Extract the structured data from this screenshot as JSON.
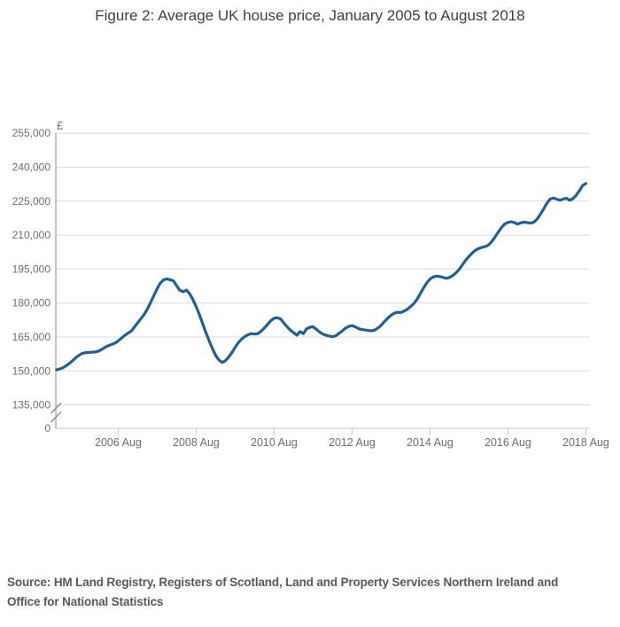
{
  "title": "Figure 2: Average UK house price, January 2005 to August 2018",
  "source_lines": [
    "Source: HM Land Registry, Registers of Scotland, Land and Property Services Northern Ireland and",
    "Office for National Statistics"
  ],
  "chart_data": {
    "type": "line",
    "title": "Figure 2: Average UK house price, January 2005 to August 2018",
    "xlabel": "",
    "ylabel": "£",
    "grid": "horizontal",
    "legend": "none",
    "axis_break_above_zero": true,
    "colors": {
      "line": "#206095",
      "gridline": "#dcdcdc",
      "y_axis": "#8c8c8c",
      "x_axis": "#bcc9d4",
      "labels": "#6f6f70"
    },
    "y_axis": {
      "title": "£",
      "range_shown": [
        135000,
        255000
      ],
      "ticks": [
        {
          "label": "255,000",
          "value": 255000
        },
        {
          "label": "240,000",
          "value": 240000
        },
        {
          "label": "225,000",
          "value": 225000
        },
        {
          "label": "210,000",
          "value": 210000
        },
        {
          "label": "195,000",
          "value": 195000
        },
        {
          "label": "180,000",
          "value": 180000
        },
        {
          "label": "165,000",
          "value": 165000
        },
        {
          "label": "150,000",
          "value": 150000
        },
        {
          "label": "135,000",
          "value": 135000
        },
        {
          "label": "0",
          "value": 0
        }
      ]
    },
    "x_axis": {
      "start": "2005-01",
      "end": "2018-08",
      "frequency": "monthly",
      "ticks": [
        {
          "label": "2006 Aug",
          "month_index": 19
        },
        {
          "label": "2008 Aug",
          "month_index": 43
        },
        {
          "label": "2010 Aug",
          "month_index": 67
        },
        {
          "label": "2012 Aug",
          "month_index": 91
        },
        {
          "label": "2014 Aug",
          "month_index": 115
        },
        {
          "label": "2016 Aug",
          "month_index": 139
        },
        {
          "label": "2018 Aug",
          "month_index": 163
        }
      ]
    },
    "series": [
      {
        "name": "Average UK house price (£)",
        "color": "#206095",
        "values": [
          150500,
          150900,
          151400,
          152300,
          153400,
          154600,
          155900,
          157000,
          157800,
          158100,
          158200,
          158300,
          158400,
          158800,
          159600,
          160500,
          161200,
          161700,
          162300,
          163300,
          164500,
          165700,
          166700,
          167600,
          169400,
          171300,
          173100,
          175000,
          177400,
          180300,
          183400,
          186400,
          188900,
          190300,
          190600,
          190300,
          189800,
          187600,
          185600,
          185000,
          185700,
          184100,
          181500,
          178400,
          174900,
          170900,
          166900,
          163400,
          159900,
          156900,
          154800,
          153800,
          154500,
          156100,
          158100,
          160400,
          162500,
          164100,
          165200,
          166000,
          166500,
          166300,
          166500,
          167500,
          169000,
          170600,
          172200,
          173300,
          173500,
          173000,
          171200,
          169500,
          168000,
          166900,
          165800,
          167400,
          166500,
          168600,
          169300,
          169500,
          168400,
          167200,
          166300,
          165800,
          165400,
          165100,
          165500,
          166600,
          167700,
          168900,
          169700,
          170000,
          169500,
          168700,
          168300,
          168100,
          167900,
          167700,
          168100,
          169000,
          170200,
          171800,
          173300,
          174600,
          175500,
          175900,
          175800,
          176400,
          177200,
          178400,
          179700,
          181600,
          184100,
          186600,
          188900,
          190600,
          191500,
          191900,
          191700,
          191300,
          190900,
          191300,
          192100,
          193300,
          194900,
          196900,
          198900,
          200600,
          202100,
          203300,
          204100,
          204600,
          204900,
          205600,
          207100,
          209100,
          211300,
          213300,
          214900,
          215600,
          215900,
          215500,
          214900,
          215400,
          215700,
          215500,
          215300,
          215700,
          217100,
          219200,
          221600,
          224100,
          225900,
          226400,
          225900,
          225400,
          225900,
          226300,
          225400,
          226100,
          227600,
          229600,
          231900,
          232800
        ]
      }
    ]
  }
}
